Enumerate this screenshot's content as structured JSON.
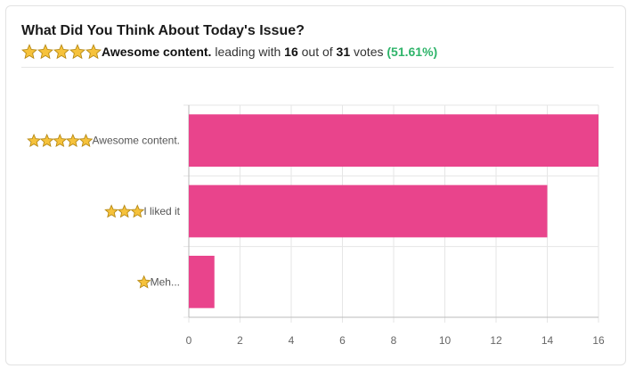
{
  "header": {
    "title": "What Did You Think About Today's Issue?",
    "leader_stars": 5,
    "leader_label": "Awesome content.",
    "text_leading": "leading with",
    "leading_votes": "16",
    "text_out_of": "out of",
    "total_votes": "31",
    "text_votes": "votes",
    "percent": "(51.61%)"
  },
  "colors": {
    "bar": "#e9448c",
    "grid": "#e6e6e6",
    "percent": "#2fb46a",
    "star": "#f6c23b"
  },
  "chart_data": {
    "type": "bar",
    "orientation": "horizontal",
    "categories": [
      {
        "stars": 5,
        "label": "Awesome content."
      },
      {
        "stars": 3,
        "label": "I liked it"
      },
      {
        "stars": 1,
        "label": "Meh..."
      }
    ],
    "values": [
      16,
      14,
      1
    ],
    "xlim": [
      0,
      16
    ],
    "xticks": [
      "0",
      "2",
      "4",
      "6",
      "8",
      "10",
      "12",
      "14",
      "16"
    ],
    "grid": true,
    "title": "",
    "xlabel": "",
    "ylabel": ""
  }
}
